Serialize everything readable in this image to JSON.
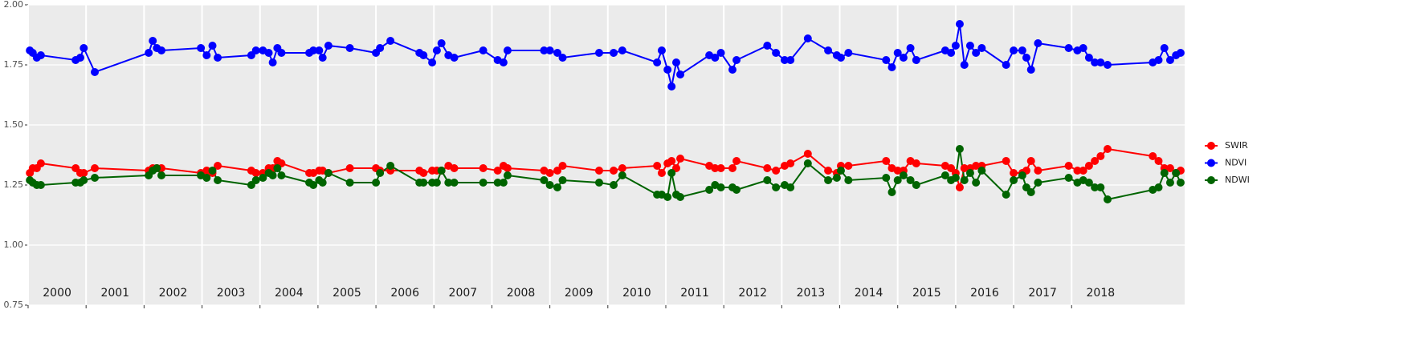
{
  "chart_data": {
    "type": "line",
    "x": [
      2000.03,
      2000.08,
      2000.15,
      2000.22,
      2000.82,
      2000.9,
      2000.96,
      2001.15,
      2002.08,
      2002.15,
      2002.22,
      2002.3,
      2002.98,
      2003.08,
      2003.18,
      2003.27,
      2003.85,
      2003.93,
      2004.05,
      2004.15,
      2004.22,
      2004.3,
      2004.37,
      2004.85,
      2004.92,
      2005.02,
      2005.08,
      2005.18,
      2005.55,
      2006.0,
      2006.07,
      2006.25,
      2006.75,
      2006.82,
      2006.97,
      2007.05,
      2007.13,
      2007.25,
      2007.35,
      2007.85,
      2008.1,
      2008.2,
      2008.27,
      2008.9,
      2009.0,
      2009.13,
      2009.22,
      2009.85,
      2010.1,
      2010.25,
      2010.85,
      2010.93,
      2011.03,
      2011.1,
      2011.18,
      2011.25,
      2011.75,
      2011.85,
      2011.95,
      2012.15,
      2012.22,
      2012.75,
      2012.9,
      2013.05,
      2013.15,
      2013.45,
      2013.8,
      2013.95,
      2014.02,
      2014.15,
      2014.8,
      2014.9,
      2015.0,
      2015.1,
      2015.22,
      2015.32,
      2015.82,
      2015.92,
      2016.0,
      2016.07,
      2016.15,
      2016.25,
      2016.35,
      2016.45,
      2016.87,
      2017.0,
      2017.15,
      2017.22,
      2017.3,
      2017.42,
      2017.95,
      2018.1,
      2018.2,
      2018.3,
      2018.4,
      2018.5,
      2018.62,
      2019.4,
      2019.5,
      2019.6,
      2019.7,
      2019.8,
      2019.88
    ],
    "series": [
      {
        "name": "SWIR",
        "color": "#ff0000",
        "values": [
          1.3,
          1.32,
          1.32,
          1.34,
          1.32,
          1.3,
          1.3,
          1.32,
          1.31,
          1.32,
          1.32,
          1.32,
          1.3,
          1.31,
          1.3,
          1.33,
          1.31,
          1.3,
          1.3,
          1.32,
          1.32,
          1.35,
          1.34,
          1.3,
          1.3,
          1.31,
          1.31,
          1.3,
          1.32,
          1.32,
          1.31,
          1.31,
          1.31,
          1.3,
          1.31,
          1.31,
          1.31,
          1.33,
          1.32,
          1.32,
          1.31,
          1.33,
          1.32,
          1.31,
          1.3,
          1.31,
          1.33,
          1.31,
          1.31,
          1.32,
          1.33,
          1.3,
          1.34,
          1.35,
          1.32,
          1.36,
          1.33,
          1.32,
          1.32,
          1.32,
          1.35,
          1.32,
          1.31,
          1.33,
          1.34,
          1.38,
          1.31,
          1.3,
          1.33,
          1.33,
          1.35,
          1.32,
          1.31,
          1.31,
          1.35,
          1.34,
          1.33,
          1.32,
          1.3,
          1.24,
          1.32,
          1.32,
          1.33,
          1.33,
          1.35,
          1.3,
          1.3,
          1.31,
          1.35,
          1.31,
          1.33,
          1.31,
          1.31,
          1.33,
          1.35,
          1.37,
          1.4,
          1.37,
          1.35,
          1.32,
          1.32,
          1.3,
          1.31
        ]
      },
      {
        "name": "NDVI",
        "color": "#0000ff",
        "values": [
          1.81,
          1.8,
          1.78,
          1.79,
          1.77,
          1.78,
          1.82,
          1.72,
          1.8,
          1.85,
          1.82,
          1.81,
          1.82,
          1.79,
          1.83,
          1.78,
          1.79,
          1.81,
          1.81,
          1.8,
          1.76,
          1.82,
          1.8,
          1.8,
          1.81,
          1.81,
          1.78,
          1.83,
          1.82,
          1.8,
          1.82,
          1.85,
          1.8,
          1.79,
          1.76,
          1.81,
          1.84,
          1.79,
          1.78,
          1.81,
          1.77,
          1.76,
          1.81,
          1.81,
          1.81,
          1.8,
          1.78,
          1.8,
          1.8,
          1.81,
          1.76,
          1.81,
          1.73,
          1.66,
          1.76,
          1.71,
          1.79,
          1.78,
          1.8,
          1.73,
          1.77,
          1.83,
          1.8,
          1.77,
          1.77,
          1.86,
          1.81,
          1.79,
          1.78,
          1.8,
          1.77,
          1.74,
          1.8,
          1.78,
          1.82,
          1.77,
          1.81,
          1.8,
          1.83,
          1.92,
          1.75,
          1.83,
          1.8,
          1.82,
          1.75,
          1.81,
          1.81,
          1.78,
          1.73,
          1.84,
          1.82,
          1.81,
          1.82,
          1.78,
          1.76,
          1.76,
          1.75,
          1.76,
          1.77,
          1.82,
          1.77,
          1.79,
          1.8
        ]
      },
      {
        "name": "NDWI",
        "color": "#006400",
        "values": [
          1.27,
          1.26,
          1.25,
          1.25,
          1.26,
          1.26,
          1.27,
          1.28,
          1.29,
          1.31,
          1.32,
          1.29,
          1.29,
          1.28,
          1.31,
          1.27,
          1.25,
          1.27,
          1.28,
          1.3,
          1.29,
          1.32,
          1.29,
          1.26,
          1.25,
          1.27,
          1.26,
          1.3,
          1.26,
          1.26,
          1.3,
          1.33,
          1.26,
          1.26,
          1.26,
          1.26,
          1.31,
          1.26,
          1.26,
          1.26,
          1.26,
          1.26,
          1.29,
          1.27,
          1.25,
          1.24,
          1.27,
          1.26,
          1.25,
          1.29,
          1.21,
          1.21,
          1.2,
          1.3,
          1.21,
          1.2,
          1.23,
          1.25,
          1.24,
          1.24,
          1.23,
          1.27,
          1.24,
          1.25,
          1.24,
          1.34,
          1.27,
          1.28,
          1.31,
          1.27,
          1.28,
          1.22,
          1.27,
          1.29,
          1.27,
          1.25,
          1.29,
          1.27,
          1.28,
          1.4,
          1.27,
          1.3,
          1.26,
          1.31,
          1.21,
          1.27,
          1.29,
          1.24,
          1.22,
          1.26,
          1.28,
          1.26,
          1.27,
          1.26,
          1.24,
          1.24,
          1.19,
          1.23,
          1.24,
          1.3,
          1.26,
          1.3,
          1.26
        ]
      }
    ],
    "legend_order": [
      "SWIR",
      "NDVI",
      "NDWI"
    ],
    "xlim": [
      2000,
      2019.95
    ],
    "xticks": [
      {
        "value": 2000,
        "label": "2000"
      },
      {
        "value": 2001,
        "label": "2001"
      },
      {
        "value": 2002,
        "label": "2002"
      },
      {
        "value": 2003,
        "label": "2003"
      },
      {
        "value": 2004,
        "label": "2004"
      },
      {
        "value": 2005,
        "label": "2005"
      },
      {
        "value": 2006,
        "label": "2006"
      },
      {
        "value": 2007,
        "label": "2007"
      },
      {
        "value": 2008,
        "label": "2008"
      },
      {
        "value": 2009,
        "label": "2009"
      },
      {
        "value": 2010,
        "label": "2010"
      },
      {
        "value": 2011,
        "label": "2011"
      },
      {
        "value": 2012,
        "label": "2012"
      },
      {
        "value": 2013,
        "label": "2013"
      },
      {
        "value": 2014,
        "label": "2014"
      },
      {
        "value": 2015,
        "label": "2015"
      },
      {
        "value": 2016,
        "label": "2016"
      },
      {
        "value": 2017,
        "label": "2017"
      },
      {
        "value": 2018,
        "label": "2018"
      }
    ],
    "ylim": [
      0.75,
      2.0
    ],
    "yticks": [
      {
        "value": 0.75,
        "label": "0.75"
      },
      {
        "value": 1.0,
        "label": "1.00"
      },
      {
        "value": 1.25,
        "label": "1.25"
      },
      {
        "value": 1.5,
        "label": "1.50"
      },
      {
        "value": 1.75,
        "label": "1.75"
      },
      {
        "value": 2.0,
        "label": "2.00"
      }
    ],
    "grid": true
  }
}
